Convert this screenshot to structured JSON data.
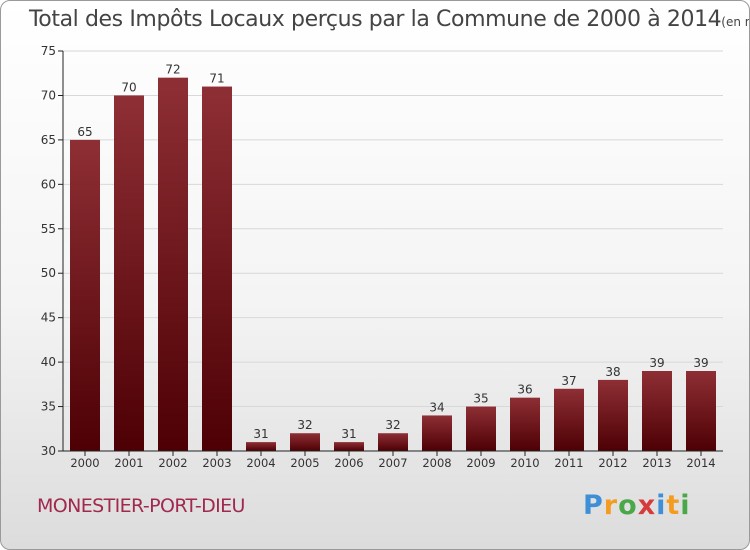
{
  "title": "Total des Impôts Locaux perçus par la Commune de 2000 à 2014",
  "title_unit": "(en milliers d'€)",
  "commune": "MONESTIER-PORT-DIEU",
  "logo": {
    "text": "Proxiti",
    "letters": [
      {
        "char": "P",
        "color": "#3f8fd6"
      },
      {
        "char": "r",
        "color": "#f39c1f"
      },
      {
        "char": "o",
        "color": "#4aa848"
      },
      {
        "char": "x",
        "color": "#d63b3b"
      },
      {
        "char": "i",
        "color": "#3f8fd6"
      },
      {
        "char": "t",
        "color": "#f39c1f"
      },
      {
        "char": "i",
        "color": "#4aa848"
      }
    ]
  },
  "colors": {
    "bar_top": "#8e2f35",
    "bar_bottom": "#4d0004",
    "grid": "#d8d8d8",
    "axis": "#222222",
    "text": "#333333"
  },
  "chart_data": {
    "type": "bar",
    "title": "Total des Impôts Locaux perçus par la Commune de 2000 à 2014",
    "xlabel": "",
    "ylabel": "",
    "categories": [
      "2000",
      "2001",
      "2002",
      "2003",
      "2004",
      "2005",
      "2006",
      "2007",
      "2008",
      "2009",
      "2010",
      "2011",
      "2012",
      "2013",
      "2014"
    ],
    "values": [
      65,
      70,
      72,
      71,
      31,
      32,
      31,
      32,
      34,
      35,
      36,
      37,
      38,
      39,
      39
    ],
    "ylim": [
      30,
      75
    ],
    "yticks": [
      30,
      35,
      40,
      45,
      50,
      55,
      60,
      65,
      70,
      75
    ],
    "grid": true,
    "data_labels": true
  }
}
